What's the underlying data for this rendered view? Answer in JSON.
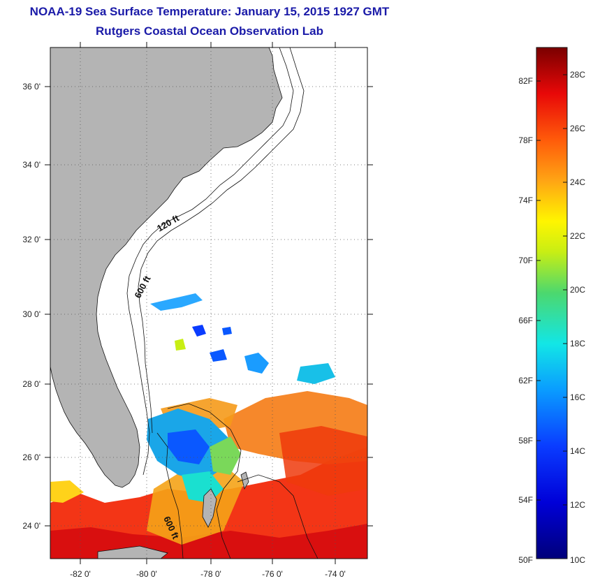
{
  "header": {
    "title": "NOAA-19 Sea Surface Temperature:  January 15, 2015 1927 GMT",
    "subtitle": "Rutgers Coastal Ocean Observation Lab"
  },
  "map": {
    "lat_ticks": [
      "24 0'",
      "26 0'",
      "28 0'",
      "30 0'",
      "32 0'",
      "34 0'",
      "36 0'"
    ],
    "lon_ticks": [
      "-82 0'",
      "-80 0'",
      "-78 0'",
      "-76 0'",
      "-74 0'"
    ],
    "contour_labels": [
      "120 ft",
      "600 ft",
      "600 ft"
    ],
    "colors": {
      "land": "#b4b4b4",
      "ocean_nodata": "#ffffff",
      "contour": "#111111"
    }
  },
  "colorbar": {
    "fahrenheit_labels": [
      "82F",
      "78F",
      "74F",
      "70F",
      "66F",
      "62F",
      "58F",
      "54F",
      "50F"
    ],
    "celsius_labels": [
      "28C",
      "26C",
      "24C",
      "22C",
      "20C",
      "18C",
      "16C",
      "14C",
      "12C",
      "10C"
    ],
    "range_c": [
      10,
      29
    ]
  }
}
